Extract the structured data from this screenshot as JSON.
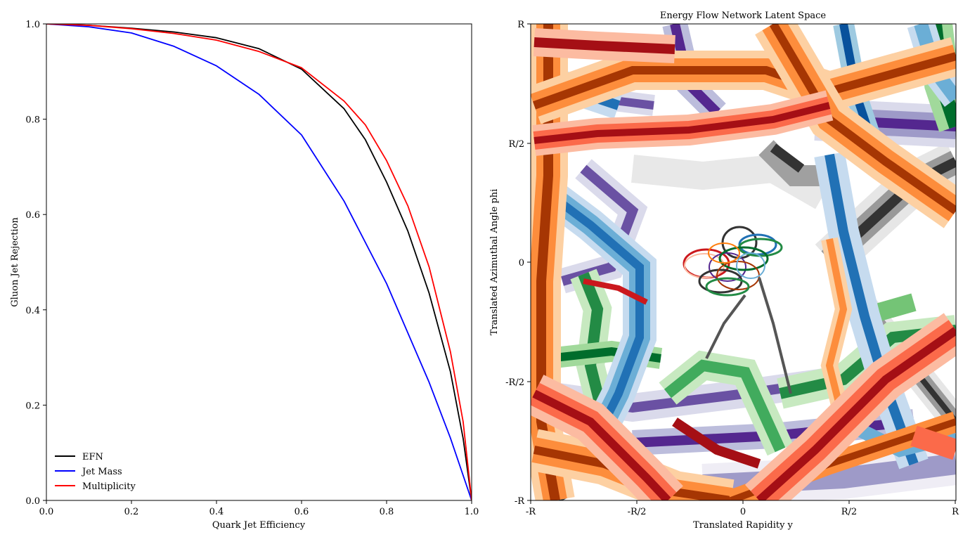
{
  "chart_data": [
    {
      "type": "line",
      "title": "",
      "xlabel": "Quark Jet Efficiency",
      "ylabel": "Gluon Jet Rejection",
      "xlim": [
        0.0,
        1.0
      ],
      "ylim": [
        0.0,
        1.0
      ],
      "xticks": [
        "0.0",
        "0.2",
        "0.4",
        "0.6",
        "0.8",
        "1.0"
      ],
      "yticks": [
        "0.0",
        "0.2",
        "0.4",
        "0.6",
        "0.8",
        "1.0"
      ],
      "grid": false,
      "legend_position": "lower-left",
      "series": [
        {
          "name": "EFN",
          "color": "#000000",
          "x": [
            0.0,
            0.1,
            0.2,
            0.3,
            0.4,
            0.5,
            0.6,
            0.7,
            0.75,
            0.8,
            0.85,
            0.9,
            0.95,
            0.98,
            1.0
          ],
          "y": [
            1.0,
            0.997,
            0.991,
            0.983,
            0.971,
            0.948,
            0.905,
            0.822,
            0.757,
            0.668,
            0.565,
            0.435,
            0.27,
            0.13,
            0.0
          ]
        },
        {
          "name": "Jet Mass",
          "color": "#0000ff",
          "x": [
            0.0,
            0.1,
            0.2,
            0.3,
            0.4,
            0.5,
            0.6,
            0.7,
            0.8,
            0.9,
            0.95,
            1.0
          ],
          "y": [
            1.0,
            0.994,
            0.981,
            0.953,
            0.912,
            0.852,
            0.767,
            0.628,
            0.455,
            0.248,
            0.131,
            0.0
          ]
        },
        {
          "name": "Multiplicity",
          "color": "#ff0000",
          "x": [
            0.0,
            0.1,
            0.2,
            0.3,
            0.4,
            0.5,
            0.6,
            0.7,
            0.75,
            0.8,
            0.85,
            0.9,
            0.95,
            0.98,
            1.0
          ],
          "y": [
            1.0,
            0.997,
            0.99,
            0.98,
            0.966,
            0.942,
            0.908,
            0.838,
            0.788,
            0.713,
            0.618,
            0.49,
            0.312,
            0.165,
            0.0
          ]
        }
      ]
    },
    {
      "type": "heatmap",
      "title": "Energy Flow Network Latent Space",
      "xlabel": "Translated Rapidity y",
      "ylabel": "Translated Azimuthal Angle phi",
      "xticks": [
        "-R",
        "-R/2",
        "0",
        "R/2",
        "R"
      ],
      "yticks": [
        "-R",
        "-R/2",
        "0",
        "R/2",
        "R"
      ],
      "grid": false
    }
  ]
}
